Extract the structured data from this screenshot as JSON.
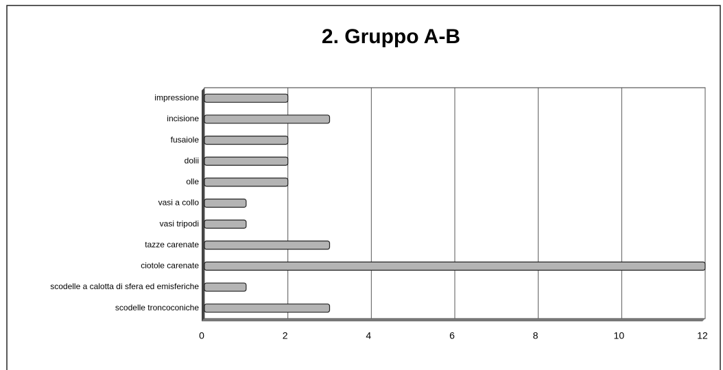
{
  "chart_data": {
    "type": "bar",
    "orientation": "horizontal",
    "title": "2. Gruppo A-B",
    "categories": [
      "impressione",
      "incisione",
      "fusaiole",
      "dolii",
      "olle",
      "vasi a collo",
      "vasi tripodi",
      "tazze carenate",
      "ciotole carenate",
      "scodelle a calotta di sfera ed emisferiche",
      "scodelle troncoconiche"
    ],
    "values": [
      2,
      3,
      2,
      2,
      2,
      1,
      1,
      3,
      12,
      1,
      3
    ],
    "color": "#b4b4b4",
    "xlim": [
      0,
      12
    ],
    "xticks": [
      0,
      2,
      4,
      6,
      8,
      10,
      12
    ],
    "grid": true
  }
}
